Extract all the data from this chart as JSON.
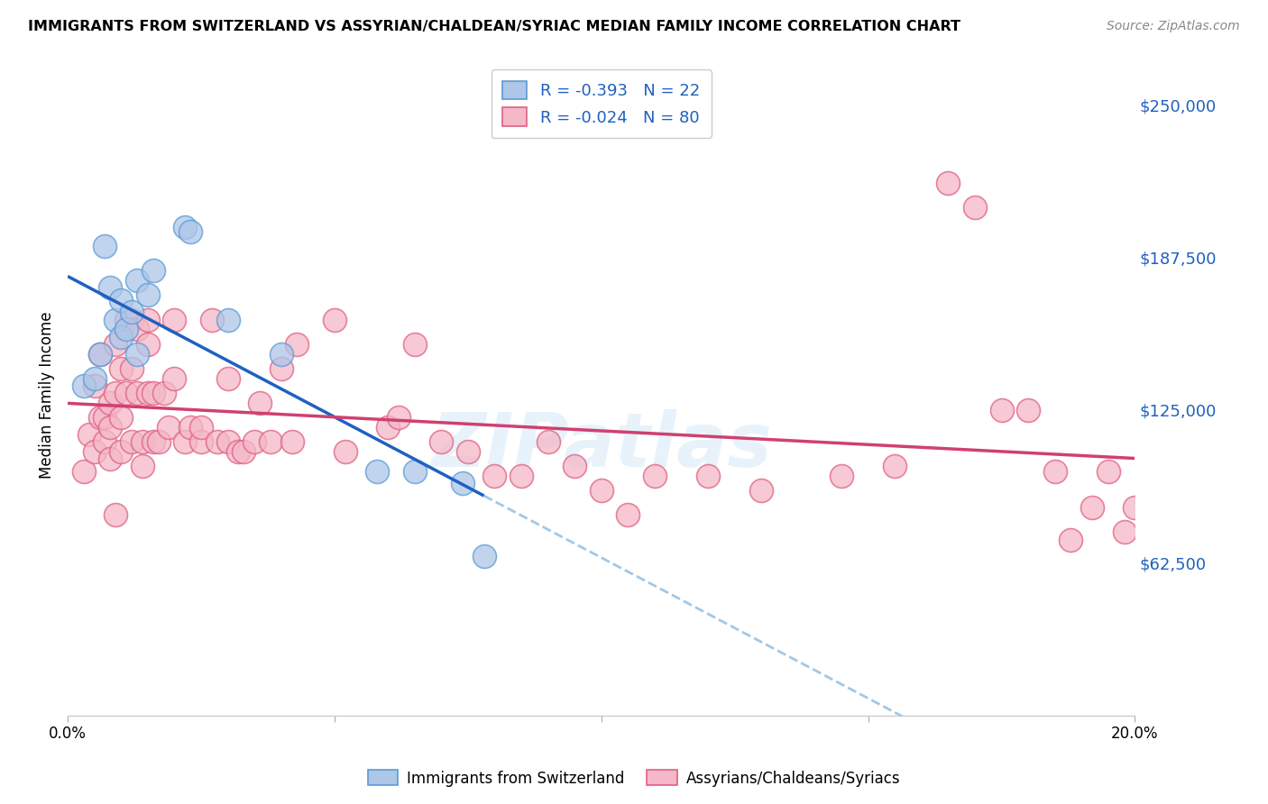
{
  "title": "IMMIGRANTS FROM SWITZERLAND VS ASSYRIAN/CHALDEAN/SYRIAC MEDIAN FAMILY INCOME CORRELATION CHART",
  "source": "Source: ZipAtlas.com",
  "ylabel": "Median Family Income",
  "xlim": [
    0.0,
    0.2
  ],
  "ylim": [
    0,
    262500
  ],
  "yticks": [
    62500,
    125000,
    187500,
    250000
  ],
  "ytick_labels": [
    "$62,500",
    "$125,000",
    "$187,500",
    "$250,000"
  ],
  "xticks": [
    0.0,
    0.05,
    0.1,
    0.15,
    0.2
  ],
  "xtick_labels": [
    "0.0%",
    "",
    "",
    "",
    "20.0%"
  ],
  "legend_blue_R": "-0.393",
  "legend_blue_N": "22",
  "legend_pink_R": "-0.024",
  "legend_pink_N": "80",
  "blue_fill_color": "#aec6e8",
  "pink_fill_color": "#f4b8c8",
  "blue_edge_color": "#5b9bd5",
  "pink_edge_color": "#e06080",
  "blue_line_color": "#2060c0",
  "pink_line_color": "#d04070",
  "dashed_line_color": "#a0c8e8",
  "watermark": "ZIPatlas",
  "blue_scatter_x": [
    0.003,
    0.005,
    0.006,
    0.007,
    0.008,
    0.009,
    0.01,
    0.01,
    0.011,
    0.012,
    0.013,
    0.013,
    0.015,
    0.016,
    0.022,
    0.023,
    0.03,
    0.04,
    0.058,
    0.065,
    0.074,
    0.078
  ],
  "blue_scatter_y": [
    135000,
    138000,
    148000,
    192000,
    175000,
    162000,
    155000,
    170000,
    158000,
    165000,
    148000,
    178000,
    172000,
    182000,
    200000,
    198000,
    162000,
    148000,
    100000,
    100000,
    95000,
    65000
  ],
  "pink_scatter_x": [
    0.003,
    0.004,
    0.005,
    0.005,
    0.006,
    0.006,
    0.007,
    0.007,
    0.008,
    0.008,
    0.008,
    0.009,
    0.009,
    0.009,
    0.01,
    0.01,
    0.01,
    0.011,
    0.011,
    0.012,
    0.012,
    0.012,
    0.013,
    0.013,
    0.014,
    0.014,
    0.015,
    0.015,
    0.015,
    0.016,
    0.016,
    0.017,
    0.018,
    0.019,
    0.02,
    0.02,
    0.022,
    0.023,
    0.025,
    0.025,
    0.027,
    0.028,
    0.03,
    0.03,
    0.032,
    0.033,
    0.035,
    0.036,
    0.038,
    0.04,
    0.042,
    0.043,
    0.05,
    0.052,
    0.06,
    0.062,
    0.065,
    0.07,
    0.075,
    0.08,
    0.085,
    0.09,
    0.095,
    0.1,
    0.105,
    0.11,
    0.12,
    0.13,
    0.145,
    0.155,
    0.165,
    0.17,
    0.175,
    0.18,
    0.185,
    0.188,
    0.192,
    0.195,
    0.198,
    0.2
  ],
  "pink_scatter_y": [
    100000,
    115000,
    135000,
    108000,
    148000,
    122000,
    122000,
    112000,
    128000,
    118000,
    105000,
    152000,
    132000,
    82000,
    142000,
    122000,
    108000,
    162000,
    132000,
    162000,
    142000,
    112000,
    158000,
    132000,
    112000,
    102000,
    162000,
    152000,
    132000,
    132000,
    112000,
    112000,
    132000,
    118000,
    162000,
    138000,
    112000,
    118000,
    112000,
    118000,
    162000,
    112000,
    112000,
    138000,
    108000,
    108000,
    112000,
    128000,
    112000,
    142000,
    112000,
    152000,
    162000,
    108000,
    118000,
    122000,
    152000,
    112000,
    108000,
    98000,
    98000,
    112000,
    102000,
    92000,
    82000,
    98000,
    98000,
    92000,
    98000,
    102000,
    218000,
    208000,
    125000,
    125000,
    100000,
    72000,
    85000,
    100000,
    75000,
    85000
  ]
}
